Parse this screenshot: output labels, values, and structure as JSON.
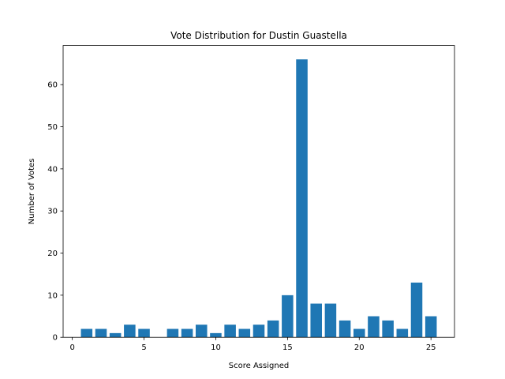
{
  "chart_data": {
    "type": "bar",
    "title": "Vote Distribution for Dustin Guastella",
    "xlabel": "Score Assigned",
    "ylabel": "Number of Votes",
    "x": [
      1,
      2,
      3,
      4,
      5,
      6,
      7,
      8,
      9,
      10,
      11,
      12,
      13,
      14,
      15,
      16,
      17,
      18,
      19,
      20,
      21,
      22,
      23,
      24,
      25
    ],
    "values": [
      2,
      2,
      1,
      3,
      2,
      0,
      2,
      2,
      3,
      1,
      3,
      2,
      3,
      4,
      10,
      66,
      8,
      8,
      4,
      2,
      5,
      4,
      2,
      13,
      5
    ],
    "xlim": [
      -0.64,
      26.64
    ],
    "ylim": [
      0,
      69.3
    ],
    "xticks": [
      0,
      5,
      10,
      15,
      20,
      25
    ],
    "yticks": [
      0,
      10,
      20,
      30,
      40,
      50,
      60
    ],
    "bar_color": "#1f77b4",
    "grid": false,
    "legend": "none"
  }
}
